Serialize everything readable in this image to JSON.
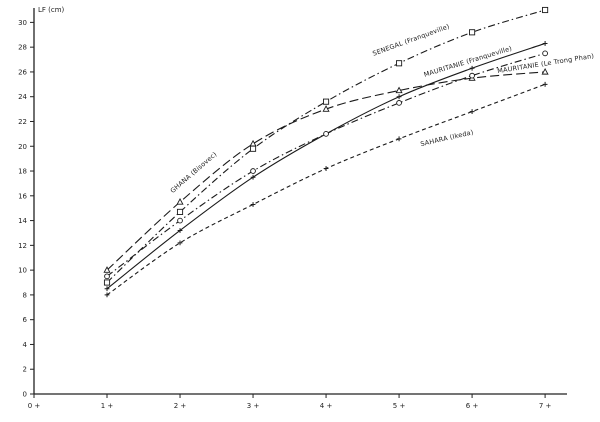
{
  "chart_data": {
    "type": "line",
    "ylabel": "LF (cm)",
    "xlabel": "",
    "xlim": [
      0,
      7.3
    ],
    "ylim": [
      0,
      31
    ],
    "xticks": [
      0,
      1,
      2,
      3,
      4,
      5,
      6,
      7
    ],
    "xtick_labels": [
      "0 +",
      "1 +",
      "2 +",
      "3 +",
      "4 +",
      "5 +",
      "6 +",
      "7 +"
    ],
    "yticks": [
      0,
      2,
      4,
      6,
      8,
      10,
      12,
      14,
      16,
      18,
      20,
      22,
      24,
      26,
      28,
      30
    ],
    "ytick_labels": [
      "0",
      "2",
      "4",
      "6",
      "8",
      "10",
      "12",
      "14",
      "16",
      "18",
      "20",
      "22",
      "24",
      "26",
      "28",
      "30"
    ],
    "grid": false,
    "series": [
      {
        "name": "SENEGAL (Franqueville)",
        "line": "dash-dot",
        "marker": "square",
        "points": [
          [
            1,
            9.0
          ],
          [
            2,
            14.7
          ],
          [
            3,
            19.8
          ],
          [
            4,
            23.6
          ],
          [
            5,
            26.7
          ],
          [
            6,
            29.2
          ],
          [
            7,
            31.0
          ]
        ]
      },
      {
        "name": "GHANA (Bisovec)",
        "line": "long-dash",
        "marker": "triangle",
        "points": [
          [
            1,
            10.0
          ],
          [
            2,
            15.5
          ],
          [
            3,
            20.2
          ],
          [
            4,
            23.0
          ],
          [
            5,
            24.5
          ],
          [
            6,
            25.5
          ],
          [
            7,
            26.0
          ]
        ]
      },
      {
        "name": "MAURITANIE (Franqueville)",
        "line": "solid",
        "marker": "plus",
        "points": [
          [
            1,
            8.5
          ],
          [
            2,
            13.2
          ],
          [
            3,
            17.5
          ],
          [
            4,
            21.0
          ],
          [
            5,
            24.0
          ],
          [
            6,
            26.3
          ],
          [
            7,
            28.3
          ]
        ]
      },
      {
        "name": "MAURITANIE (Le Trong Phan)",
        "line": "dash-dot",
        "marker": "circle",
        "points": [
          [
            1,
            9.5
          ],
          [
            2,
            14.0
          ],
          [
            3,
            18.0
          ],
          [
            4,
            21.0
          ],
          [
            5,
            23.5
          ],
          [
            6,
            25.7
          ],
          [
            7,
            27.5
          ]
        ]
      },
      {
        "name": "SAHARA (Ikeda)",
        "line": "short-dash",
        "marker": "plus",
        "points": [
          [
            1,
            8.0
          ],
          [
            2,
            12.2
          ],
          [
            3,
            15.3
          ],
          [
            4,
            18.2
          ],
          [
            5,
            20.6
          ],
          [
            6,
            22.8
          ],
          [
            7,
            25.0
          ]
        ]
      }
    ]
  }
}
